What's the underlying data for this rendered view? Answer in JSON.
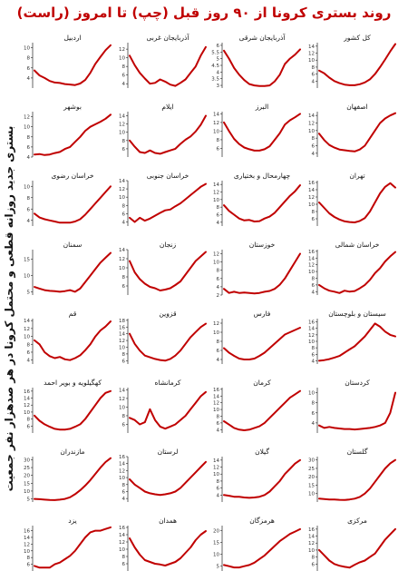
{
  "title": "روند بستری کرونا از ۹۰ روز قبل (چپ) تا امروز (راست)",
  "side_label": "بستری جدید روزانه قطعی و محتمل کرونا در هر صدهزار نفر جمعیت",
  "colors": {
    "line": "#c00000",
    "title": "#c00000",
    "axis": "#222222"
  },
  "chart_data": {
    "type": "line",
    "x_range": "last 90 days",
    "panels": [
      {
        "name": "کل کشور",
        "ylim": [
          2,
          15
        ],
        "ticks": [
          4,
          6,
          8,
          10,
          12,
          14
        ],
        "values": [
          7.0,
          6.2,
          5.0,
          4.0,
          3.4,
          3.0,
          2.8,
          2.8,
          3.1,
          3.6,
          4.5,
          6.0,
          8.0,
          10.2,
          12.5,
          14.6
        ]
      },
      {
        "name": "آذربایجان شرقی",
        "ylim": [
          2.8,
          6.2
        ],
        "ticks": [
          3.0,
          3.5,
          4.0,
          4.5,
          5.0,
          5.5,
          6.0
        ],
        "values": [
          5.6,
          5.0,
          4.3,
          3.8,
          3.4,
          3.1,
          3.0,
          2.95,
          2.95,
          3.0,
          3.3,
          3.8,
          4.6,
          5.0,
          5.3,
          5.7
        ]
      },
      {
        "name": "آذربایجان غربی",
        "ylim": [
          3,
          13.5
        ],
        "ticks": [
          4,
          6,
          8,
          10,
          12
        ],
        "values": [
          10.5,
          8.3,
          6.5,
          5.2,
          4.0,
          4.2,
          5.0,
          4.5,
          3.8,
          3.5,
          4.2,
          5.0,
          6.5,
          8.0,
          10.5,
          12.5
        ]
      },
      {
        "name": "اردبیل",
        "ylim": [
          2,
          11
        ],
        "ticks": [
          4,
          6,
          8,
          10
        ],
        "values": [
          5.5,
          4.5,
          4.0,
          3.4,
          3.1,
          3.0,
          2.8,
          2.7,
          2.6,
          2.9,
          3.6,
          5.0,
          6.8,
          8.2,
          9.5,
          10.5
        ]
      },
      {
        "name": "اصفهان",
        "ylim": [
          3,
          15
        ],
        "ticks": [
          4,
          6,
          8,
          10,
          12,
          14
        ],
        "values": [
          9.2,
          7.5,
          6.2,
          5.5,
          5.0,
          4.8,
          4.6,
          4.5,
          5.0,
          6.0,
          8.0,
          10.0,
          12.0,
          13.2,
          14.0,
          14.6
        ]
      },
      {
        "name": "البرز",
        "ylim": [
          4,
          14.5
        ],
        "ticks": [
          6,
          8,
          10,
          12,
          14
        ],
        "values": [
          12.0,
          10.0,
          8.2,
          7.0,
          6.2,
          5.8,
          5.5,
          5.5,
          5.8,
          6.5,
          8.0,
          9.5,
          11.5,
          12.5,
          13.2,
          14.0
        ]
      },
      {
        "name": "ایلام",
        "ylim": [
          4,
          15
        ],
        "ticks": [
          6,
          8,
          10,
          12,
          14
        ],
        "values": [
          8.0,
          6.5,
          5.2,
          5.0,
          5.6,
          5.0,
          4.8,
          5.2,
          5.6,
          6.0,
          7.2,
          8.2,
          9.0,
          10.2,
          11.8,
          14.0
        ]
      },
      {
        "name": "بوشهر",
        "ylim": [
          4,
          13
        ],
        "ticks": [
          4,
          6,
          8,
          10,
          12
        ],
        "values": [
          4.5,
          4.6,
          4.4,
          4.5,
          4.8,
          5.0,
          5.6,
          6.0,
          7.0,
          8.0,
          9.2,
          10.0,
          10.5,
          11.0,
          11.6,
          12.4
        ]
      },
      {
        "name": "تهران",
        "ylim": [
          4,
          16.5
        ],
        "ticks": [
          6,
          8,
          10,
          12,
          14,
          16
        ],
        "values": [
          10.5,
          9.0,
          7.5,
          6.5,
          5.8,
          5.3,
          5.1,
          5.0,
          5.4,
          6.2,
          8.0,
          10.5,
          13.0,
          14.8,
          15.8,
          14.6
        ]
      },
      {
        "name": "چهارمحال و بختیاری",
        "ylim": [
          3,
          15
        ],
        "ticks": [
          4,
          6,
          8,
          10,
          12,
          14
        ],
        "values": [
          8.5,
          7.0,
          6.0,
          5.0,
          4.5,
          4.6,
          4.2,
          4.3,
          5.0,
          5.5,
          6.5,
          8.0,
          9.5,
          11.0,
          12.2,
          13.8
        ]
      },
      {
        "name": "خراسان جنوبی",
        "ylim": [
          3,
          14
        ],
        "ticks": [
          4,
          6,
          8,
          10,
          12,
          14
        ],
        "values": [
          5.0,
          4.0,
          5.0,
          4.3,
          4.8,
          5.5,
          6.2,
          6.8,
          7.0,
          7.8,
          8.5,
          9.5,
          10.5,
          11.5,
          12.5,
          13.2
        ]
      },
      {
        "name": "خراسان رضوی",
        "ylim": [
          3,
          11
        ],
        "ticks": [
          4,
          6,
          8,
          10
        ],
        "values": [
          5.2,
          4.5,
          4.2,
          4.0,
          3.8,
          3.6,
          3.6,
          3.6,
          3.8,
          4.2,
          5.0,
          6.0,
          7.0,
          8.0,
          9.0,
          10.0
        ]
      },
      {
        "name": "خراسان شمالی",
        "ylim": [
          3,
          16.5
        ],
        "ticks": [
          4,
          6,
          8,
          10,
          12,
          14,
          16
        ],
        "values": [
          6.0,
          5.0,
          4.3,
          4.0,
          3.6,
          4.3,
          4.0,
          4.2,
          5.0,
          6.0,
          7.5,
          9.5,
          11.0,
          13.0,
          14.5,
          15.8
        ]
      },
      {
        "name": "خوزستان",
        "ylim": [
          2,
          13
        ],
        "ticks": [
          2,
          4,
          6,
          8,
          10,
          12
        ],
        "values": [
          3.5,
          2.5,
          2.8,
          2.5,
          2.6,
          2.5,
          2.4,
          2.5,
          2.8,
          3.0,
          3.5,
          4.5,
          6.0,
          8.0,
          10.0,
          12.0
        ]
      },
      {
        "name": "زنجان",
        "ylim": [
          4,
          14
        ],
        "ticks": [
          6,
          8,
          10,
          12,
          14
        ],
        "values": [
          11.5,
          9.0,
          7.5,
          6.5,
          5.8,
          5.5,
          5.0,
          5.2,
          5.5,
          6.2,
          7.0,
          8.5,
          10.0,
          11.5,
          12.5,
          13.5
        ]
      },
      {
        "name": "سمنان",
        "ylim": [
          4,
          18
        ],
        "ticks": [
          5,
          10,
          15
        ],
        "values": [
          6.5,
          6.0,
          5.5,
          5.3,
          5.2,
          5.0,
          5.2,
          5.5,
          5.0,
          6.0,
          8.0,
          10.0,
          12.0,
          14.0,
          15.5,
          17.0
        ]
      },
      {
        "name": "سیستان و بلوچستان",
        "ylim": [
          3,
          17
        ],
        "ticks": [
          4,
          6,
          8,
          10,
          12,
          14,
          16
        ],
        "values": [
          4.0,
          4.2,
          4.5,
          5.0,
          5.5,
          6.5,
          7.5,
          8.5,
          10.0,
          11.5,
          13.5,
          15.5,
          14.5,
          13.0,
          12.0,
          11.5
        ]
      },
      {
        "name": "فارس",
        "ylim": [
          3,
          13
        ],
        "ticks": [
          4,
          6,
          8,
          10,
          12
        ],
        "values": [
          6.5,
          5.5,
          4.8,
          4.2,
          4.0,
          4.0,
          4.2,
          4.8,
          5.5,
          6.5,
          7.5,
          8.5,
          9.5,
          10.0,
          10.5,
          11.0
        ]
      },
      {
        "name": "قزوین",
        "ylim": [
          5,
          18.5
        ],
        "ticks": [
          6,
          8,
          10,
          12,
          14,
          16,
          18
        ],
        "values": [
          14.0,
          11.0,
          9.0,
          7.5,
          7.0,
          6.5,
          6.2,
          6.0,
          6.5,
          7.5,
          9.0,
          11.0,
          13.0,
          14.5,
          16.0,
          17.0
        ]
      },
      {
        "name": "قم",
        "ylim": [
          3,
          14.5
        ],
        "ticks": [
          4,
          6,
          8,
          10,
          12,
          14
        ],
        "values": [
          9.0,
          8.0,
          6.0,
          5.0,
          4.5,
          4.8,
          4.2,
          4.0,
          4.5,
          5.2,
          6.5,
          8.0,
          10.0,
          11.5,
          12.5,
          13.8
        ]
      },
      {
        "name": "کردستان",
        "ylim": [
          2,
          11
        ],
        "ticks": [
          4,
          6,
          8,
          10
        ],
        "values": [
          3.5,
          3.0,
          3.2,
          3.0,
          2.9,
          2.8,
          2.8,
          2.7,
          2.8,
          2.9,
          3.0,
          3.2,
          3.5,
          4.0,
          6.0,
          10.0
        ]
      },
      {
        "name": "کرمان",
        "ylim": [
          3,
          16.5
        ],
        "ticks": [
          4,
          6,
          8,
          10,
          12,
          14,
          16
        ],
        "values": [
          6.5,
          5.5,
          4.5,
          4.0,
          3.8,
          4.0,
          4.5,
          5.0,
          6.0,
          7.5,
          9.0,
          10.5,
          12.0,
          13.5,
          14.5,
          15.5
        ]
      },
      {
        "name": "کرمانشاه",
        "ylim": [
          4,
          14.5
        ],
        "ticks": [
          6,
          8,
          10,
          12,
          14
        ],
        "values": [
          7.5,
          7.0,
          6.0,
          6.5,
          9.5,
          7.0,
          5.5,
          5.0,
          5.5,
          6.0,
          7.0,
          8.0,
          9.5,
          11.0,
          12.5,
          13.5
        ]
      },
      {
        "name": "کهگیلویه و بویر احمد",
        "ylim": [
          4,
          17
        ],
        "ticks": [
          6,
          8,
          10,
          12,
          14,
          16
        ],
        "values": [
          9.0,
          7.5,
          6.5,
          5.8,
          5.2,
          5.0,
          5.0,
          5.2,
          5.8,
          6.5,
          8.0,
          10.0,
          12.0,
          14.0,
          15.5,
          16.0
        ]
      },
      {
        "name": "گلستان",
        "ylim": [
          5,
          32
        ],
        "ticks": [
          10,
          15,
          20,
          25,
          30
        ],
        "values": [
          7.0,
          6.8,
          6.5,
          6.5,
          6.3,
          6.2,
          6.5,
          7.0,
          8.0,
          10.0,
          13.0,
          17.0,
          21.0,
          25.0,
          28.0,
          30.0
        ]
      },
      {
        "name": "گیلان",
        "ylim": [
          2,
          15
        ],
        "ticks": [
          4,
          6,
          8,
          10,
          12,
          14
        ],
        "values": [
          4.0,
          3.8,
          3.5,
          3.5,
          3.3,
          3.2,
          3.3,
          3.5,
          4.0,
          5.0,
          6.5,
          8.0,
          10.0,
          11.5,
          13.0,
          14.0
        ]
      },
      {
        "name": "لرستان",
        "ylim": [
          3,
          16
        ],
        "ticks": [
          4,
          6,
          8,
          10,
          12,
          14,
          16
        ],
        "values": [
          9.5,
          8.0,
          7.0,
          6.0,
          5.5,
          5.2,
          5.0,
          5.2,
          5.5,
          6.0,
          7.0,
          8.5,
          10.0,
          11.5,
          13.0,
          14.5
        ]
      },
      {
        "name": "مازندران",
        "ylim": [
          3,
          32
        ],
        "ticks": [
          5,
          10,
          15,
          20,
          25,
          30
        ],
        "values": [
          5.0,
          4.8,
          4.5,
          4.3,
          4.2,
          4.5,
          5.0,
          6.0,
          8.0,
          10.5,
          13.5,
          17.0,
          21.0,
          25.0,
          28.5,
          31.0
        ]
      },
      {
        "name": "مرکزی",
        "ylim": [
          4,
          17
        ],
        "ticks": [
          6,
          8,
          10,
          12,
          14,
          16
        ],
        "values": [
          10.0,
          8.5,
          7.0,
          6.0,
          5.5,
          5.2,
          5.0,
          5.8,
          6.5,
          7.0,
          8.0,
          9.0,
          11.0,
          13.0,
          14.5,
          16.0
        ]
      },
      {
        "name": "هرمزگان",
        "ylim": [
          3,
          22
        ],
        "ticks": [
          5,
          10,
          15,
          20
        ],
        "values": [
          5.5,
          5.0,
          4.5,
          4.5,
          5.0,
          5.5,
          6.5,
          8.0,
          9.5,
          11.5,
          13.5,
          15.5,
          17.0,
          18.5,
          19.5,
          20.5
        ]
      },
      {
        "name": "همدان",
        "ylim": [
          4,
          16.5
        ],
        "ticks": [
          6,
          8,
          10,
          12,
          14,
          16
        ],
        "values": [
          13.0,
          10.5,
          8.5,
          7.0,
          6.5,
          6.0,
          5.8,
          5.5,
          6.0,
          6.5,
          7.5,
          9.0,
          10.5,
          12.5,
          14.0,
          15.0
        ]
      },
      {
        "name": "یزد",
        "ylim": [
          4,
          17.5
        ],
        "ticks": [
          6,
          8,
          10,
          12,
          14,
          16
        ],
        "values": [
          5.5,
          5.0,
          5.0,
          5.0,
          6.0,
          6.5,
          7.5,
          8.5,
          10.0,
          12.0,
          14.0,
          15.5,
          16.0,
          16.0,
          16.5,
          17.0
        ]
      }
    ]
  }
}
